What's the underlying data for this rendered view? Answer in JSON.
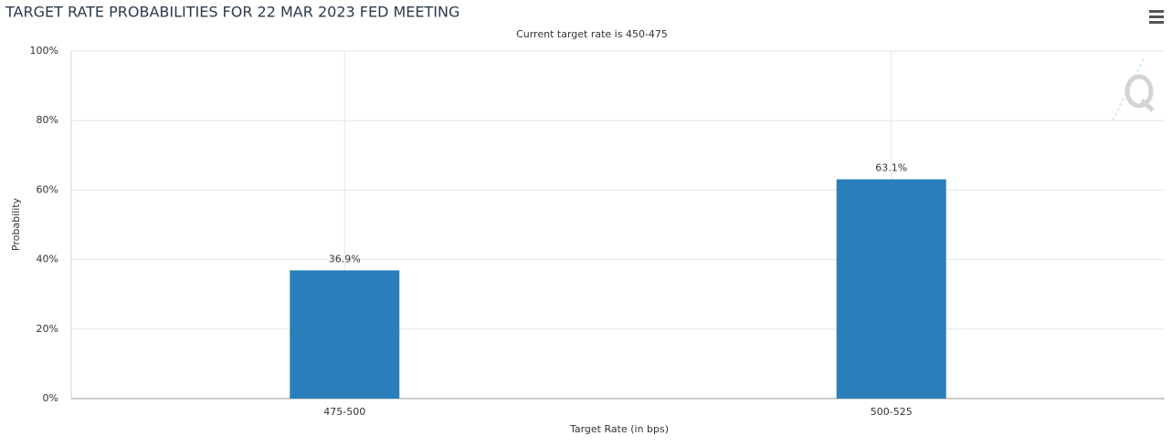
{
  "chart_data": {
    "type": "bar",
    "title": "TARGET RATE PROBABILITIES FOR 22 MAR 2023 FED MEETING",
    "subtitle": "Current target rate is 450-475",
    "x_label": "Target Rate (in bps)",
    "y_label": "Probability",
    "categories": [
      "475-500",
      "500-525"
    ],
    "values": [
      36.9,
      63.1
    ],
    "value_labels": [
      "36.9%",
      "63.1%"
    ],
    "color": "#2a7fba",
    "ylim": [
      0,
      100
    ],
    "yticks": [
      {
        "value": 0,
        "label": "0%"
      },
      {
        "value": 20,
        "label": "20%"
      },
      {
        "value": 40,
        "label": "40%"
      },
      {
        "value": 60,
        "label": "60%"
      },
      {
        "value": 80,
        "label": "80%"
      },
      {
        "value": 100,
        "label": "100%"
      }
    ],
    "grid": true
  }
}
